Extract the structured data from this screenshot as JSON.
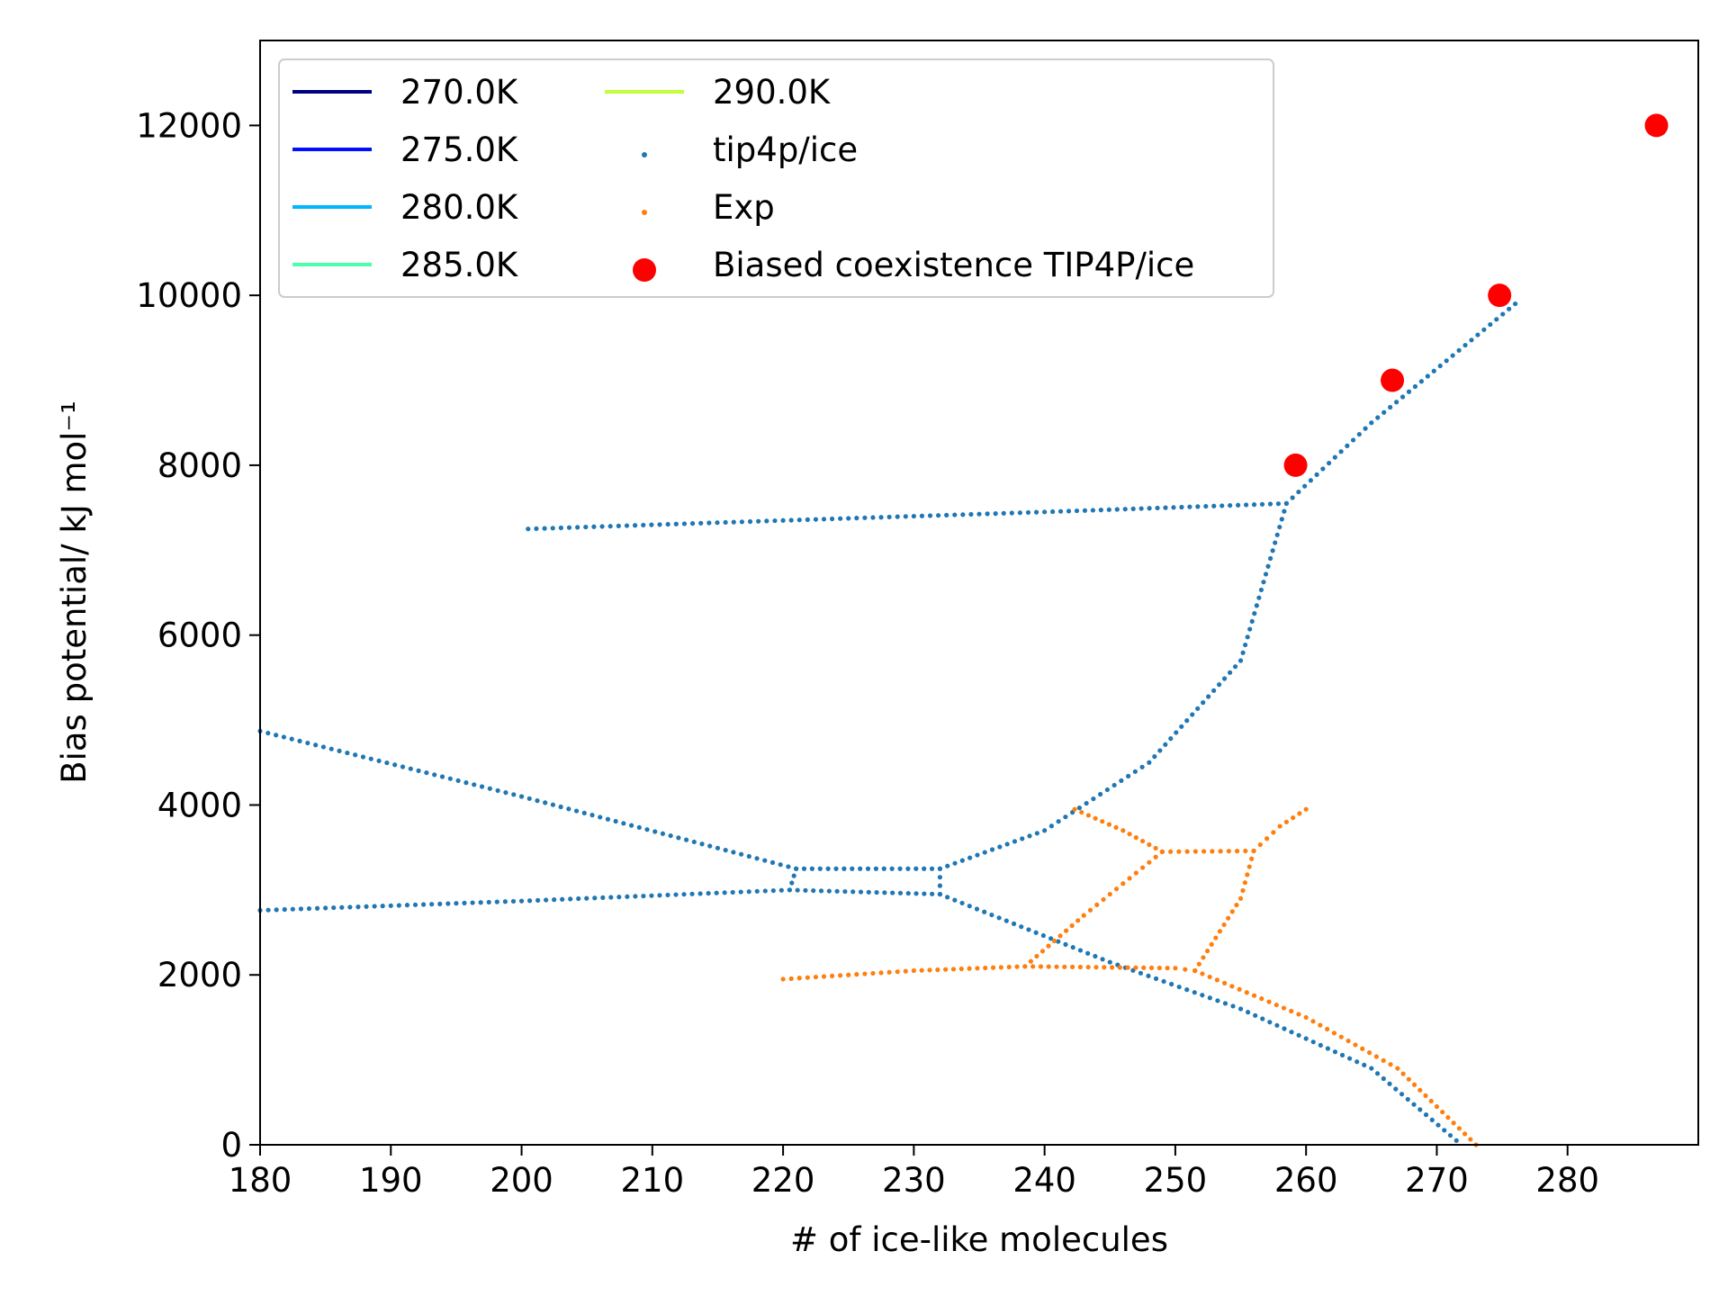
{
  "chart_data": {
    "type": "scatter",
    "title": "",
    "xlabel": "# of ice-like molecules",
    "ylabel": "Bias potential/ kJ mol⁻¹",
    "xlim": [
      180,
      290
    ],
    "ylim": [
      0,
      13000
    ],
    "x_ticks": [
      180,
      190,
      200,
      210,
      220,
      230,
      240,
      250,
      260,
      270,
      280
    ],
    "x_tick_labels": [
      "180",
      "190",
      "200",
      "210",
      "220",
      "230",
      "240",
      "250",
      "260",
      "270",
      "280"
    ],
    "y_ticks": [
      0,
      2000,
      4000,
      6000,
      8000,
      10000,
      12000
    ],
    "y_tick_labels": [
      "0",
      "2000",
      "4000",
      "6000",
      "8000",
      "10000",
      "12000"
    ],
    "grid": false,
    "legend_position": "top-left",
    "legend": [
      {
        "label": "270.0K",
        "kind": "line",
        "color": "#00007f"
      },
      {
        "label": "275.0K",
        "kind": "line",
        "color": "#0010ff"
      },
      {
        "label": "280.0K",
        "kind": "line",
        "color": "#00b4ff"
      },
      {
        "label": "285.0K",
        "kind": "line",
        "color": "#4dffaa"
      },
      {
        "label": "290.0K",
        "kind": "line",
        "color": "#c1ff3c"
      },
      {
        "label": "tip4p/ice",
        "kind": "point",
        "color": "#1f77b4"
      },
      {
        "label": "Exp",
        "kind": "point",
        "color": "#ff7f0e"
      },
      {
        "label": "Biased coexistence TIP4P/ice",
        "kind": "marker",
        "color": "#ff0000"
      }
    ],
    "series": [
      {
        "name": "tip4p/ice",
        "color": "#1f77b4",
        "style": "dotted",
        "segments": [
          [
            [
              200.5,
              7250
            ],
            [
              220,
              7350
            ],
            [
              240,
              7450
            ],
            [
              258.5,
              7550
            ]
          ],
          [
            [
              180,
              4870
            ],
            [
              200,
              4100
            ],
            [
              221,
              3250
            ],
            [
              232,
              3250
            ],
            [
              240,
              3700
            ],
            [
              248,
              4500
            ],
            [
              255,
              5700
            ],
            [
              258.5,
              7550
            ],
            [
              265,
              8500
            ],
            [
              276,
              9900
            ]
          ],
          [
            [
              180,
              2760
            ],
            [
              200,
              2870
            ],
            [
              220.5,
              3000
            ],
            [
              232,
              2950
            ]
          ],
          [
            [
              221,
              3250
            ],
            [
              220.5,
              3000
            ]
          ],
          [
            [
              232,
              3250
            ],
            [
              232,
              2950
            ]
          ],
          [
            [
              232,
              2950
            ],
            [
              245,
              2150
            ],
            [
              255,
              1600
            ],
            [
              265,
              900
            ],
            [
              271.5,
              50
            ]
          ]
        ]
      },
      {
        "name": "Exp",
        "color": "#ff7f0e",
        "style": "dotted",
        "segments": [
          [
            [
              220,
              1950
            ],
            [
              230,
              2050
            ],
            [
              238.5,
              2100
            ],
            [
              250,
              2080
            ],
            [
              251.5,
              2050
            ]
          ],
          [
            [
              238.5,
              2100
            ],
            [
              243,
              2700
            ],
            [
              249,
              3450
            ]
          ],
          [
            [
              242.3,
              3950
            ],
            [
              246,
              3700
            ],
            [
              249,
              3450
            ]
          ],
          [
            [
              249,
              3450
            ],
            [
              256,
              3460
            ]
          ],
          [
            [
              256,
              3460
            ],
            [
              255,
              2900
            ],
            [
              251.5,
              2050
            ]
          ],
          [
            [
              256,
              3460
            ],
            [
              258,
              3750
            ],
            [
              260,
              3950
            ]
          ],
          [
            [
              251.5,
              2050
            ],
            [
              260,
              1500
            ],
            [
              267,
              900
            ],
            [
              273,
              0
            ]
          ]
        ]
      },
      {
        "name": "Biased coexistence TIP4P/ice",
        "color": "#ff0000",
        "style": "marker",
        "points": [
          [
            259.2,
            8000
          ],
          [
            266.6,
            9000
          ],
          [
            274.8,
            10000
          ],
          [
            286.8,
            12000
          ]
        ]
      }
    ]
  }
}
